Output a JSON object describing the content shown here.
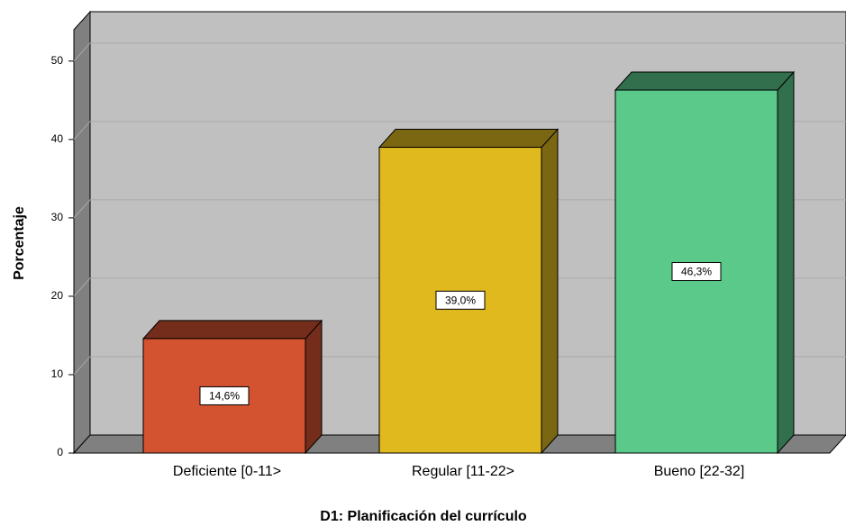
{
  "chart_data": {
    "type": "bar3d",
    "x_label": "D1: Planificación del currículo",
    "y_label": "Porcentaje",
    "categories": [
      "Deficiente [0-11>",
      "Regular [11-22>",
      "Bueno [22-32]"
    ],
    "values": [
      14.6,
      39.0,
      46.3
    ],
    "value_labels": [
      "14,6%",
      "39,0%",
      "46,3%"
    ],
    "colors": [
      "#d35230",
      "#e0b91e",
      "#5ac98a"
    ],
    "ylim": [
      0,
      54
    ],
    "yticks": [
      0,
      10,
      20,
      30,
      40,
      50
    ],
    "grid": true
  }
}
